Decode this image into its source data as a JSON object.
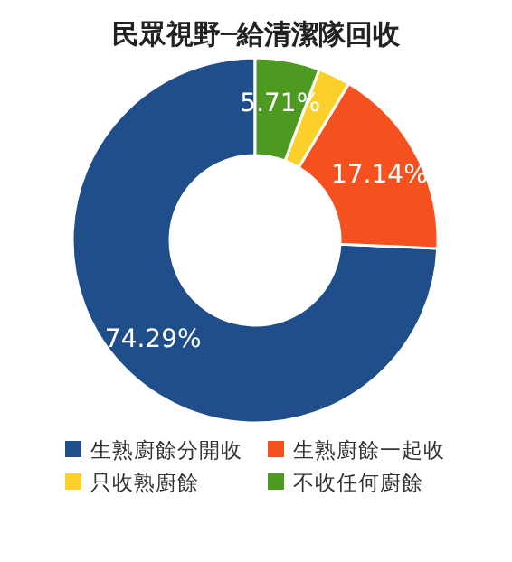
{
  "chart_data": {
    "type": "donut",
    "title": "民眾視野─給清潔隊回收",
    "categories": [
      "生熟廚餘分開收",
      "生熟廚餘一起收",
      "只收熟廚餘",
      "不收任何廚餘"
    ],
    "values": [
      74.29,
      17.14,
      2.86,
      5.71
    ],
    "colors": [
      "#1f4e8a",
      "#f4511e",
      "#fbd02a",
      "#4c9a1f"
    ],
    "value_labels": [
      "74.29%",
      "17.14%",
      null,
      "5.71%"
    ],
    "legend": "bottom"
  }
}
